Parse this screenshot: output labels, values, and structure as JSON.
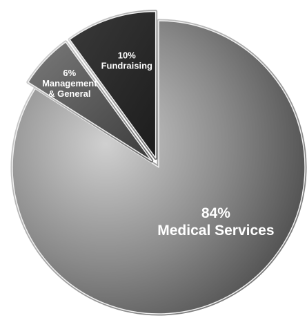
{
  "chart_data": {
    "type": "pie",
    "title": "",
    "slices": [
      {
        "value": 84,
        "percent_label": "84%",
        "category_lines": [
          "Medical Services"
        ],
        "color": "#9a9a9a",
        "exploded": false
      },
      {
        "value": 6,
        "percent_label": "6%",
        "category_lines": [
          "Management",
          "& General"
        ],
        "color": "#5a5a5a",
        "exploded": true
      },
      {
        "value": 10,
        "percent_label": "10%",
        "category_lines": [
          "Fundraising"
        ],
        "color": "#2e2e2e",
        "exploded": true
      }
    ],
    "start_angle_deg": 0,
    "direction": "clockwise",
    "legend": "none"
  }
}
